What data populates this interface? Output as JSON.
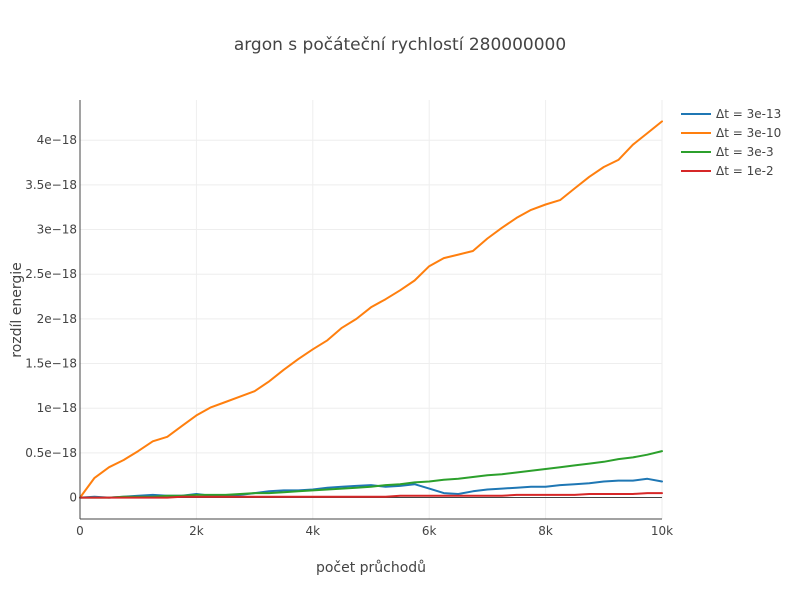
{
  "chart_data": {
    "type": "line",
    "title": "argon s počáteční rychlostí 280000000",
    "xlabel": "počet průchodů",
    "ylabel": "rozdíl energie",
    "xlim": [
      0,
      10000
    ],
    "ylim": [
      -2.4e-19,
      4.45e-18
    ],
    "grid": true,
    "legend_position": "top-right",
    "x_ticks": [
      {
        "value": 0,
        "label": "0"
      },
      {
        "value": 2000,
        "label": "2k"
      },
      {
        "value": 4000,
        "label": "4k"
      },
      {
        "value": 6000,
        "label": "6k"
      },
      {
        "value": 8000,
        "label": "8k"
      },
      {
        "value": 10000,
        "label": "10k"
      }
    ],
    "y_ticks": [
      {
        "value": 0,
        "label": "0"
      },
      {
        "value": 5e-19,
        "label": "0.5e−18"
      },
      {
        "value": 1e-18,
        "label": "1e−18"
      },
      {
        "value": 1.5e-18,
        "label": "1.5e−18"
      },
      {
        "value": 2e-18,
        "label": "2e−18"
      },
      {
        "value": 2.5e-18,
        "label": "2.5e−18"
      },
      {
        "value": 3e-18,
        "label": "3e−18"
      },
      {
        "value": 3.5e-18,
        "label": "3.5e−18"
      },
      {
        "value": 4e-18,
        "label": "4e−18"
      }
    ],
    "x": [
      0,
      250,
      500,
      750,
      1000,
      1250,
      1500,
      1750,
      2000,
      2250,
      2500,
      2750,
      3000,
      3250,
      3500,
      3750,
      4000,
      4250,
      4500,
      4750,
      5000,
      5250,
      5500,
      5750,
      6000,
      6250,
      6500,
      6750,
      7000,
      7250,
      7500,
      7750,
      8000,
      8250,
      8500,
      8750,
      9000,
      9250,
      9500,
      9750,
      10000
    ],
    "series": [
      {
        "name": "Δt = 3e-13",
        "color": "#1f77b4",
        "values": [
          0,
          1e-20,
          0,
          1e-20,
          2e-20,
          3e-20,
          2e-20,
          2e-20,
          4e-20,
          2e-20,
          2e-20,
          3e-20,
          5e-20,
          7e-20,
          8e-20,
          8e-20,
          9e-20,
          1.1e-19,
          1.2e-19,
          1.3e-19,
          1.4e-19,
          1.2e-19,
          1.3e-19,
          1.5e-19,
          1e-19,
          5e-20,
          4e-20,
          7e-20,
          9e-20,
          1e-19,
          1.1e-19,
          1.2e-19,
          1.2e-19,
          1.4e-19,
          1.5e-19,
          1.6e-19,
          1.8e-19,
          1.9e-19,
          1.9e-19,
          2.1e-19,
          1.8e-19
        ]
      },
      {
        "name": "Δt = 3e-10",
        "color": "#ff7f0e",
        "values": [
          0,
          2.2e-19,
          3.4e-19,
          4.2e-19,
          5.2e-19,
          6.3e-19,
          6.8e-19,
          8e-19,
          9.2e-19,
          1.01e-18,
          1.07e-18,
          1.13e-18,
          1.19e-18,
          1.3e-18,
          1.43e-18,
          1.55e-18,
          1.66e-18,
          1.76e-18,
          1.9e-18,
          2e-18,
          2.13e-18,
          2.22e-18,
          2.32e-18,
          2.43e-18,
          2.59e-18,
          2.68e-18,
          2.72e-18,
          2.76e-18,
          2.9e-18,
          3.02e-18,
          3.13e-18,
          3.22e-18,
          3.28e-18,
          3.33e-18,
          3.46e-18,
          3.59e-18,
          3.7e-18,
          3.78e-18,
          3.95e-18,
          4.08e-18,
          4.21e-18
        ]
      },
      {
        "name": "Δt = 3e-3",
        "color": "#2ca02c",
        "values": [
          0,
          0,
          0,
          1e-20,
          1e-20,
          1e-20,
          2e-20,
          2e-20,
          3e-20,
          3e-20,
          3e-20,
          4e-20,
          5e-20,
          5e-20,
          6e-20,
          7e-20,
          8e-20,
          9e-20,
          1e-19,
          1.1e-19,
          1.2e-19,
          1.4e-19,
          1.5e-19,
          1.7e-19,
          1.8e-19,
          2e-19,
          2.1e-19,
          2.3e-19,
          2.5e-19,
          2.6e-19,
          2.8e-19,
          3e-19,
          3.2e-19,
          3.4e-19,
          3.6e-19,
          3.8e-19,
          4e-19,
          4.3e-19,
          4.5e-19,
          4.8e-19,
          5.2e-19
        ]
      },
      {
        "name": "Δt = 1e-2",
        "color": "#d62728",
        "values": [
          0,
          0,
          0,
          0,
          0,
          0,
          0,
          1e-20,
          1e-20,
          1e-20,
          1e-20,
          1e-20,
          1e-20,
          1e-20,
          1e-20,
          1e-20,
          1e-20,
          1e-20,
          1e-20,
          1e-20,
          1e-20,
          1e-20,
          2e-20,
          2e-20,
          2e-20,
          2e-20,
          2e-20,
          2e-20,
          2e-20,
          2e-20,
          3e-20,
          3e-20,
          3e-20,
          3e-20,
          3e-20,
          4e-20,
          4e-20,
          4e-20,
          4e-20,
          5e-20,
          5e-20
        ]
      }
    ]
  }
}
